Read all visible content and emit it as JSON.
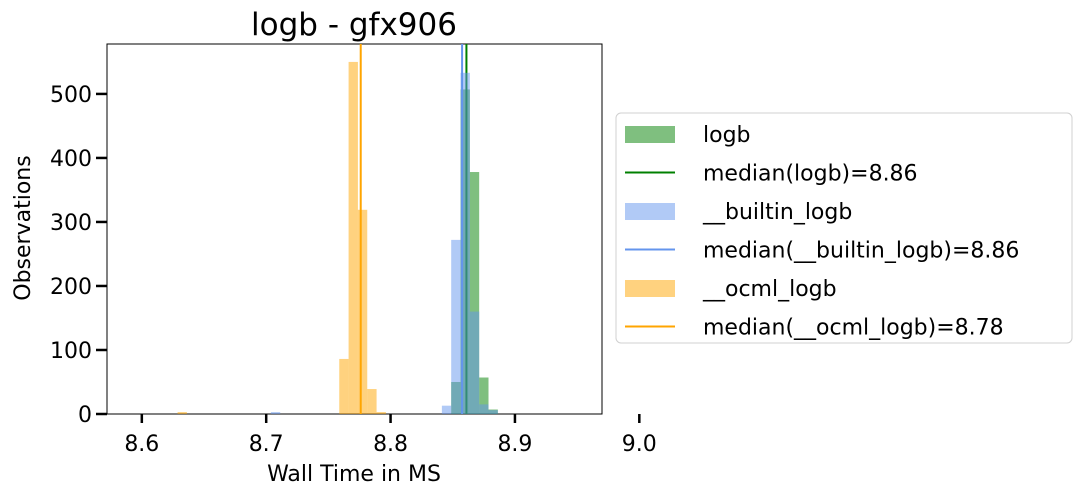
{
  "chart_data": {
    "type": "histogram",
    "title": "logb - gfx906",
    "xlabel": "Wall Time in MS",
    "ylabel": "Observations",
    "xlim": [
      8.572,
      8.97
    ],
    "ylim": [
      0,
      578
    ],
    "xticks": [
      8.6,
      8.7,
      8.8,
      8.9,
      9.0
    ],
    "xtick_labels": [
      "8.6",
      "8.7",
      "8.8",
      "8.9",
      "9.0"
    ],
    "yticks": [
      0,
      100,
      200,
      300,
      400,
      500
    ],
    "ytick_labels": [
      "0",
      "100",
      "200",
      "300",
      "400",
      "500"
    ],
    "grid": false,
    "legend_position": "outside-right",
    "bin_width": 0.0075,
    "series": [
      {
        "name": "logb",
        "kind": "histogram",
        "color": "#008000",
        "opacity": 0.5,
        "bins": [
          {
            "x": 8.8525,
            "count": 50
          },
          {
            "x": 8.86,
            "count": 507
          },
          {
            "x": 8.8675,
            "count": 378
          },
          {
            "x": 8.875,
            "count": 57
          },
          {
            "x": 8.8825,
            "count": 7
          }
        ]
      },
      {
        "name": "median(logb)=8.86",
        "kind": "vline",
        "color": "#008000",
        "x": 8.861
      },
      {
        "name": "__builtin_logb",
        "kind": "histogram",
        "color": "#6495ED",
        "opacity": 0.5,
        "bins": [
          {
            "x": 8.7075,
            "count": 3
          },
          {
            "x": 8.845,
            "count": 13
          },
          {
            "x": 8.8525,
            "count": 272
          },
          {
            "x": 8.86,
            "count": 533
          },
          {
            "x": 8.8675,
            "count": 160
          },
          {
            "x": 8.875,
            "count": 15
          },
          {
            "x": 8.8825,
            "count": 6
          }
        ]
      },
      {
        "name": "median(__builtin_logb)=8.86",
        "kind": "vline",
        "color": "#6495ED",
        "x": 8.8575
      },
      {
        "name": "__ocml_logb",
        "kind": "histogram",
        "color": "#FFA500",
        "opacity": 0.5,
        "bins": [
          {
            "x": 8.6325,
            "count": 3
          },
          {
            "x": 8.7625,
            "count": 86
          },
          {
            "x": 8.77,
            "count": 550
          },
          {
            "x": 8.7775,
            "count": 319
          },
          {
            "x": 8.785,
            "count": 39
          },
          {
            "x": 8.7925,
            "count": 3
          }
        ]
      },
      {
        "name": "median(__ocml_logb)=8.78",
        "kind": "vline",
        "color": "#FFA500",
        "x": 8.776
      }
    ]
  }
}
